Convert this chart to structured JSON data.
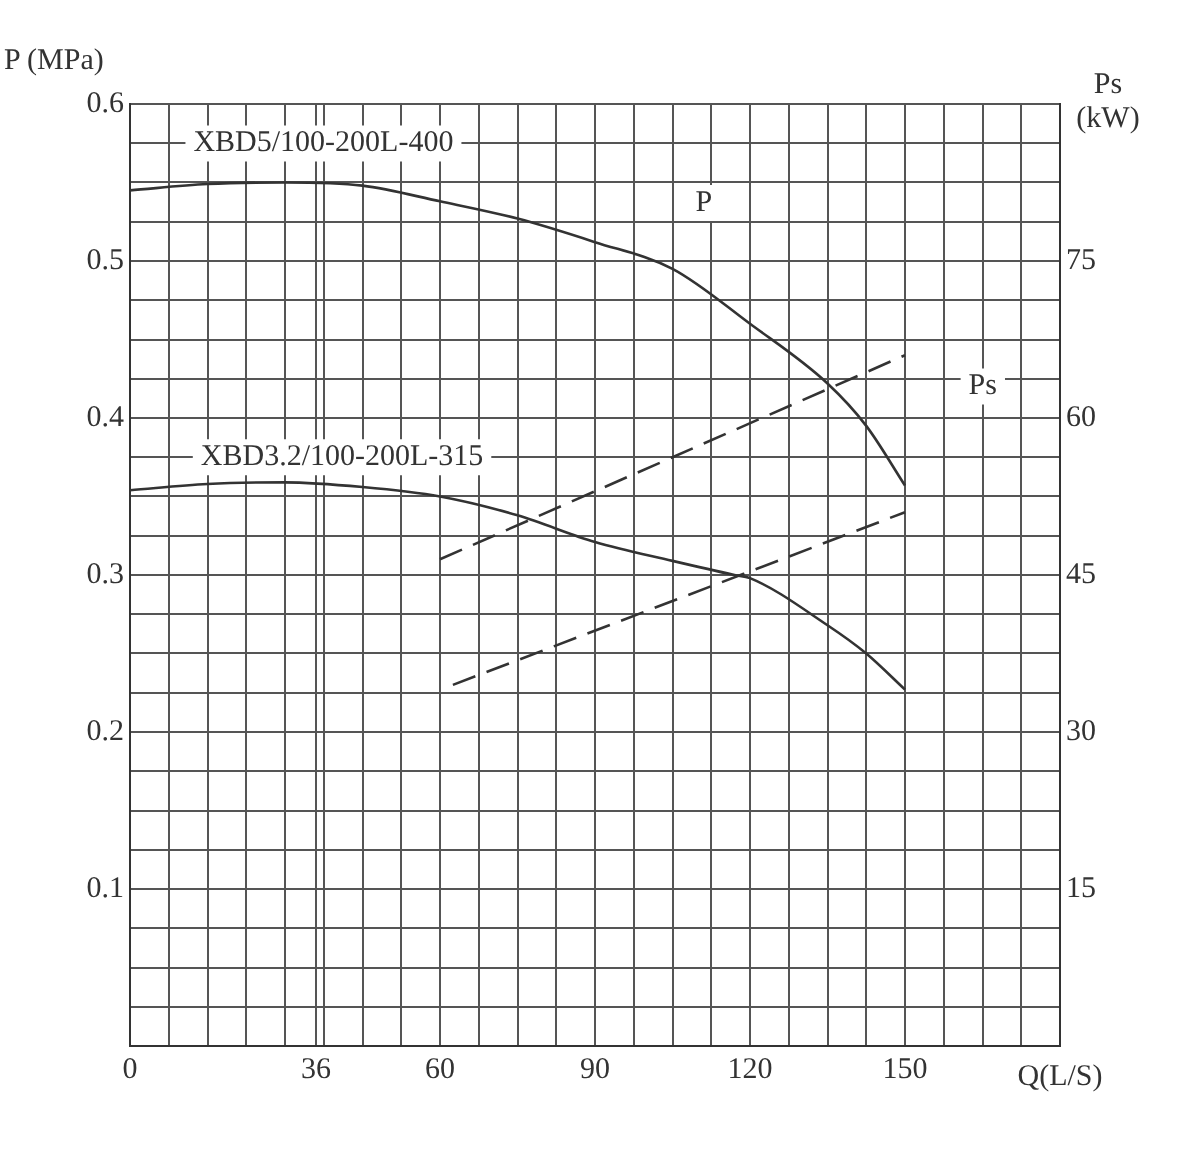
{
  "chart_data": {
    "type": "line",
    "xlabel": "Q(L/S)",
    "ylabel": "P (MPa)",
    "y2label": "Ps (kW)",
    "series": [
      {
        "color": "#333333",
        "x": [
          0,
          15,
          30,
          45,
          60,
          75,
          90,
          105,
          120,
          135,
          142.5,
          150
        ],
        "values": [
          0.545,
          0.549,
          0.55,
          0.548,
          0.538,
          0.527,
          0.512,
          0.495,
          0.46,
          0.422,
          0.395,
          0.357
        ]
      },
      {
        "color": "#333333",
        "x": [
          0,
          15,
          30,
          45,
          60,
          75,
          90,
          105,
          117,
          120,
          135,
          142.5,
          150
        ],
        "values": [
          0.354,
          0.358,
          0.359,
          0.356,
          0.35,
          0.338,
          0.321,
          0.309,
          0.3,
          0.298,
          0.268,
          0.25,
          0.227
        ]
      },
      {
        "color": "#333333",
        "axis": "y2",
        "line_style": "dashed",
        "x": [
          60,
          150
        ],
        "values": [
          46.5,
          66
        ]
      },
      {
        "color": "#333333",
        "axis": "y2",
        "line_style": "dashed",
        "x": [
          62.5,
          150
        ],
        "values": [
          34.5,
          51
        ]
      }
    ],
    "annotations": [
      "XBD5/100-200L-400",
      "XBD3.2/100-200L-315",
      "P",
      "Ps"
    ],
    "xlim": [
      0,
      180
    ],
    "xticks": [
      0,
      {
        "value": 7.5,
        "label": null
      },
      {
        "value": 15,
        "label": null
      },
      {
        "value": 22.5,
        "label": null
      },
      {
        "value": 30,
        "label": null
      },
      36,
      {
        "value": 37.5,
        "label": null
      },
      {
        "value": 45,
        "label": null
      },
      {
        "value": 52.5,
        "label": null
      },
      60,
      {
        "value": 67.5,
        "label": null
      },
      {
        "value": 75,
        "label": null
      },
      {
        "value": 82.5,
        "label": null
      },
      90,
      {
        "value": 97.5,
        "label": null
      },
      {
        "value": 105,
        "label": null
      },
      {
        "value": 112.5,
        "label": null
      },
      120,
      {
        "value": 127.5,
        "label": null
      },
      {
        "value": 135,
        "label": null
      },
      {
        "value": 142.5,
        "label": null
      },
      150,
      {
        "value": 157.5,
        "label": null
      },
      {
        "value": 165,
        "label": null
      },
      {
        "value": 172.5,
        "label": null
      },
      {
        "value": 180,
        "label": null
      }
    ],
    "ylim": [
      0,
      0.6
    ],
    "yticks": [
      {
        "value": 0,
        "label": null
      },
      {
        "value": 0.025,
        "label": null
      },
      {
        "value": 0.05,
        "label": null
      },
      {
        "value": 0.075,
        "label": null
      },
      0.1,
      {
        "value": 0.125,
        "label": null
      },
      {
        "value": 0.15,
        "label": null
      },
      {
        "value": 0.175,
        "label": null
      },
      0.2,
      {
        "value": 0.225,
        "label": null
      },
      {
        "value": 0.25,
        "label": null
      },
      {
        "value": 0.275,
        "label": null
      },
      0.3,
      {
        "value": 0.325,
        "label": null
      },
      {
        "value": 0.35,
        "label": null
      },
      {
        "value": 0.375,
        "label": null
      },
      0.4,
      {
        "value": 0.425,
        "label": null
      },
      {
        "value": 0.45,
        "label": null
      },
      {
        "value": 0.475,
        "label": null
      },
      0.5,
      {
        "value": 0.525,
        "label": null
      },
      {
        "value": 0.55,
        "label": null
      },
      {
        "value": 0.575,
        "label": null
      },
      0.6
    ],
    "y2lim": [
      0,
      90
    ],
    "y2ticks": [
      15,
      30,
      45,
      60,
      75
    ],
    "grid": true,
    "legend": false,
    "marker": "none",
    "line_style": "solid"
  }
}
